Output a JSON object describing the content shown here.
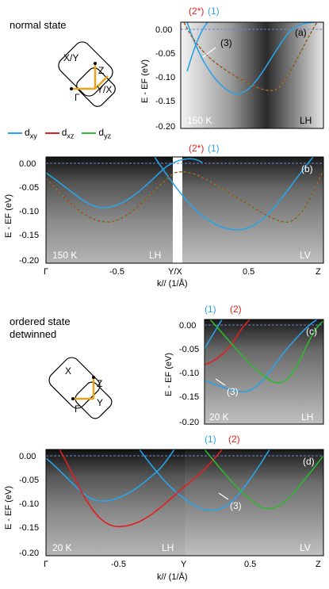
{
  "sections": {
    "normal_state": "normal state",
    "ordered_state_line1": "ordered state",
    "ordered_state_line2": "detwinned"
  },
  "bz_top": {
    "x_label": "X/Y",
    "z_label": "Z",
    "gamma": "Γ",
    "y_label": "Y/X"
  },
  "bz_bottom": {
    "x_label": "X",
    "z_label": "Z",
    "gamma": "Γ",
    "y_label": "Y"
  },
  "legend": [
    {
      "label": "dxy",
      "sub": "xy",
      "color": "#29a3e6"
    },
    {
      "label": "dxz",
      "sub": "xz",
      "color": "#e02020"
    },
    {
      "label": "dyz",
      "sub": "yz",
      "color": "#2eb82e"
    }
  ],
  "colors": {
    "dxy": "#29a3e6",
    "dxz": "#e02020",
    "dyz": "#2eb82e",
    "fermi": "#6b86d6",
    "axis_k": "#e8a31a"
  },
  "chart_data": [
    {
      "panel": "(a)",
      "type": "line",
      "ylabel": "E - EF (eV)",
      "ylim": [
        -0.2,
        0.02
      ],
      "yticks": [
        "0.00",
        "-0.05",
        "-0.10",
        "-0.15",
        "-0.20"
      ],
      "temperature": "150 K",
      "polarization": "LH",
      "band_labels": {
        "b2": "(2*)",
        "b1": "(1)",
        "b3": "(3)"
      },
      "x": [
        -0.9,
        -0.7,
        -0.5,
        -0.3,
        -0.1,
        0.1,
        0.3,
        0.5,
        0.7,
        0.9
      ],
      "series": [
        {
          "name": "dxy",
          "values": [
            -0.03,
            -0.065,
            -0.09,
            -0.11,
            -0.13,
            -0.135,
            -0.11,
            -0.08,
            -0.04,
            0.0
          ]
        },
        {
          "name": "dxz",
          "values": [
            0.015,
            -0.01,
            -0.04,
            -0.07,
            -0.1,
            -0.118,
            -0.12,
            -0.09,
            -0.04,
            0.0
          ]
        }
      ]
    },
    {
      "panel": "(b)",
      "type": "line",
      "ylabel": "E - EF (eV)",
      "ylim": [
        -0.2,
        0.02
      ],
      "yticks": [
        "0.00",
        "-0.05",
        "-0.10",
        "-0.15",
        "-0.20"
      ],
      "xticks": [
        "Γ",
        "-0.5",
        "Y/X",
        "0.5",
        "Z"
      ],
      "temperature": "150 K",
      "polarization_left": "LH",
      "polarization_right": "LV",
      "xlabel": "k// (1/Å)",
      "band_labels": {
        "b2": "(2*)",
        "b1": "(1)"
      },
      "x": [
        -1.0,
        -0.8,
        -0.6,
        -0.5,
        -0.4,
        -0.2,
        0.0,
        0.2,
        0.4,
        0.6,
        0.8,
        1.0
      ],
      "series": [
        {
          "name": "dxy",
          "values": [
            -0.03,
            -0.06,
            -0.085,
            -0.09,
            -0.085,
            -0.06,
            -0.01,
            -0.12,
            -0.135,
            -0.11,
            -0.05,
            0.0
          ]
        },
        {
          "name": "dxz",
          "values": [
            -0.04,
            -0.08,
            -0.105,
            -0.11,
            -0.105,
            -0.07,
            -0.02,
            -0.05,
            -0.095,
            -0.12,
            -0.1,
            -0.05
          ]
        }
      ]
    },
    {
      "panel": "(c)",
      "type": "line",
      "ylabel": "E - EF (eV)",
      "ylim": [
        -0.2,
        0.02
      ],
      "yticks": [
        "0.00",
        "-0.05",
        "-0.10",
        "-0.15",
        "-0.20"
      ],
      "temperature": "20 K",
      "polarization": "LH",
      "band_labels": {
        "b1": "(1)",
        "b2": "(2)",
        "b3": "(3)"
      },
      "x": [
        0.0,
        0.1,
        0.2,
        0.3,
        0.4,
        0.5,
        0.6,
        0.7,
        0.8,
        0.9,
        1.0
      ],
      "series": [
        {
          "name": "dxy",
          "values": [
            -0.1,
            -0.115,
            -0.125,
            -0.13,
            -0.12,
            -0.09,
            -0.06,
            -0.03,
            0.0,
            0.0,
            0.0
          ]
        },
        {
          "name": "dxz",
          "values": [
            -0.07,
            -0.06,
            -0.04,
            -0.02,
            0.0,
            0.0,
            0.0,
            0.0,
            0.0,
            0.0,
            0.0
          ]
        },
        {
          "name": "dyz",
          "values": [
            0.0,
            -0.02,
            -0.04,
            -0.06,
            -0.08,
            -0.095,
            -0.09,
            -0.06,
            -0.03,
            0.0,
            0.0
          ]
        }
      ]
    },
    {
      "panel": "(d)",
      "type": "line",
      "ylabel": "E - EF (eV)",
      "ylim": [
        -0.2,
        0.02
      ],
      "yticks": [
        "0.00",
        "-0.05",
        "-0.10",
        "-0.15",
        "-0.20"
      ],
      "xticks": [
        "Γ",
        "-0.5",
        "Y",
        "0.5",
        "Z"
      ],
      "temperature": "20 K",
      "polarization_left": "LH",
      "polarization_right": "LV",
      "xlabel": "k// (1/Å)",
      "band_labels": {
        "b1": "(1)",
        "b2": "(2)",
        "b3": "(3)"
      },
      "x": [
        -1.0,
        -0.8,
        -0.6,
        -0.5,
        -0.4,
        -0.2,
        0.0,
        0.2,
        0.4,
        0.6,
        0.8,
        1.0
      ],
      "series": [
        {
          "name": "dxy",
          "values": [
            -0.03,
            -0.07,
            -0.09,
            -0.09,
            -0.085,
            -0.07,
            -0.1,
            -0.12,
            -0.13,
            -0.1,
            -0.05,
            0.0
          ]
        },
        {
          "name": "dxz",
          "values": [
            -0.02,
            -0.1,
            -0.145,
            -0.14,
            -0.13,
            -0.1,
            -0.05,
            0.0,
            0.0,
            0.0,
            0.0,
            0.0
          ]
        },
        {
          "name": "dyz",
          "values": [
            0.0,
            0.0,
            0.0,
            0.0,
            0.0,
            0.0,
            0.0,
            -0.03,
            -0.07,
            -0.095,
            -0.06,
            -0.02
          ]
        }
      ]
    }
  ]
}
